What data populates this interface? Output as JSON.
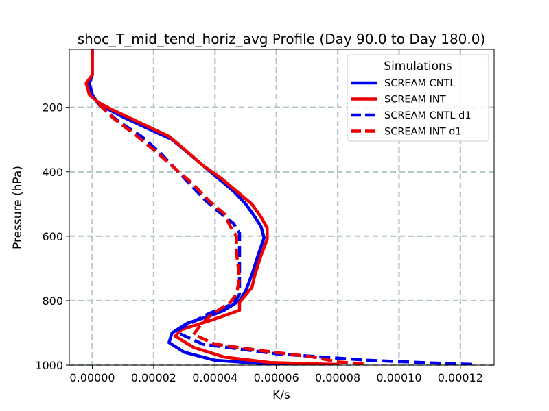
{
  "chart_data": {
    "type": "line",
    "title": "shoc_T_mid_tend_horiz_avg Profile (Day 90.0 to Day 180.0)",
    "xlabel": "K/s",
    "ylabel": "Pressure (hPa)",
    "xlim": [
      -7.5e-06,
      0.000131
    ],
    "ylim": [
      1000,
      20
    ],
    "y_inverted": true,
    "grid": true,
    "x_ticks": [
      0,
      2e-05,
      4e-05,
      6e-05,
      8e-05,
      0.0001,
      0.00012
    ],
    "x_tick_labels": [
      "0.00000",
      "0.00002",
      "0.00004",
      "0.00006",
      "0.00008",
      "0.00010",
      "0.00012"
    ],
    "y_ticks": [
      200,
      400,
      600,
      800,
      1000
    ],
    "y_tick_labels": [
      "200",
      "400",
      "600",
      "800",
      "1000"
    ],
    "legend": {
      "title": "Simulations",
      "position": "top-right"
    },
    "series": [
      {
        "name": "SCREAM CNTL",
        "color": "#0000ee",
        "dash": "solid",
        "points": [
          [
            0,
            20
          ],
          [
            0,
            100
          ],
          [
            -1e-06,
            125
          ],
          [
            0,
            160
          ],
          [
            2e-06,
            190
          ],
          [
            1e-05,
            230
          ],
          [
            1.8e-05,
            265
          ],
          [
            2.6e-05,
            300
          ],
          [
            3.1e-05,
            340
          ],
          [
            3.6e-05,
            380
          ],
          [
            4.1e-05,
            420
          ],
          [
            4.6e-05,
            460
          ],
          [
            5e-05,
            500
          ],
          [
            5.3e-05,
            540
          ],
          [
            5.5e-05,
            570
          ],
          [
            5.6e-05,
            605
          ],
          [
            5.4e-05,
            660
          ],
          [
            5.2e-05,
            720
          ],
          [
            5e-05,
            770
          ],
          [
            4.8e-05,
            800
          ],
          [
            4.3e-05,
            830
          ],
          [
            3.9e-05,
            845
          ],
          [
            3.1e-05,
            870
          ],
          [
            2.6e-05,
            900
          ],
          [
            2.5e-05,
            930
          ],
          [
            3e-05,
            960
          ],
          [
            4e-05,
            985
          ],
          [
            5.5e-05,
            995
          ],
          [
            8e-05,
            998
          ]
        ]
      },
      {
        "name": "SCREAM INT",
        "color": "#ee0000",
        "dash": "solid",
        "points": [
          [
            0,
            20
          ],
          [
            0,
            100
          ],
          [
            -2e-06,
            125
          ],
          [
            -1e-06,
            160
          ],
          [
            2e-06,
            185
          ],
          [
            6e-06,
            205
          ],
          [
            1.6e-05,
            250
          ],
          [
            2.5e-05,
            290
          ],
          [
            3e-05,
            330
          ],
          [
            3.6e-05,
            380
          ],
          [
            4.2e-05,
            420
          ],
          [
            4.7e-05,
            460
          ],
          [
            5.2e-05,
            500
          ],
          [
            5.5e-05,
            540
          ],
          [
            5.7e-05,
            575
          ],
          [
            5.7e-05,
            610
          ],
          [
            5.5e-05,
            660
          ],
          [
            5.3e-05,
            720
          ],
          [
            5.2e-05,
            760
          ],
          [
            4.8e-05,
            805
          ],
          [
            4.8e-05,
            830
          ],
          [
            3.9e-05,
            860
          ],
          [
            2.9e-05,
            890
          ],
          [
            2.7e-05,
            910
          ],
          [
            3.3e-05,
            945
          ],
          [
            4.3e-05,
            975
          ],
          [
            5.8e-05,
            992
          ],
          [
            8e-05,
            998
          ]
        ]
      },
      {
        "name": "SCREAM CNTL d1",
        "color": "#0000ee",
        "dash": "dashed",
        "points": [
          [
            2e-06,
            190
          ],
          [
            8e-06,
            240
          ],
          [
            1.6e-05,
            290
          ],
          [
            2.2e-05,
            340
          ],
          [
            2.7e-05,
            390
          ],
          [
            3.2e-05,
            440
          ],
          [
            3.7e-05,
            490
          ],
          [
            4.2e-05,
            530
          ],
          [
            4.6e-05,
            560
          ],
          [
            4.8e-05,
            590
          ],
          [
            4.8e-05,
            650
          ],
          [
            4.8e-05,
            730
          ],
          [
            4.8e-05,
            780
          ],
          [
            4.6e-05,
            810
          ],
          [
            3.8e-05,
            840
          ],
          [
            3.3e-05,
            865
          ],
          [
            2.8e-05,
            890
          ],
          [
            2.8e-05,
            900
          ],
          [
            3.6e-05,
            935
          ],
          [
            6e-05,
            965
          ],
          [
            9e-05,
            985
          ],
          [
            0.00011,
            993
          ],
          [
            0.000125,
            998
          ]
        ]
      },
      {
        "name": "SCREAM INT d1",
        "color": "#ee0000",
        "dash": "dashed",
        "points": [
          [
            2e-06,
            190
          ],
          [
            7e-06,
            235
          ],
          [
            1.4e-05,
            285
          ],
          [
            2.1e-05,
            340
          ],
          [
            2.7e-05,
            390
          ],
          [
            3.3e-05,
            440
          ],
          [
            3.8e-05,
            490
          ],
          [
            4.3e-05,
            530
          ],
          [
            4.5e-05,
            570
          ],
          [
            4.7e-05,
            600
          ],
          [
            4.7e-05,
            650
          ],
          [
            4.8e-05,
            730
          ],
          [
            4.7e-05,
            780
          ],
          [
            4.5e-05,
            805
          ],
          [
            4.1e-05,
            830
          ],
          [
            3.8e-05,
            850
          ],
          [
            3.5e-05,
            880
          ],
          [
            3.3e-05,
            905
          ],
          [
            4e-05,
            935
          ],
          [
            5.5e-05,
            955
          ],
          [
            7.2e-05,
            975
          ],
          [
            8e-05,
            990
          ],
          [
            9e-05,
            997
          ]
        ]
      }
    ]
  }
}
